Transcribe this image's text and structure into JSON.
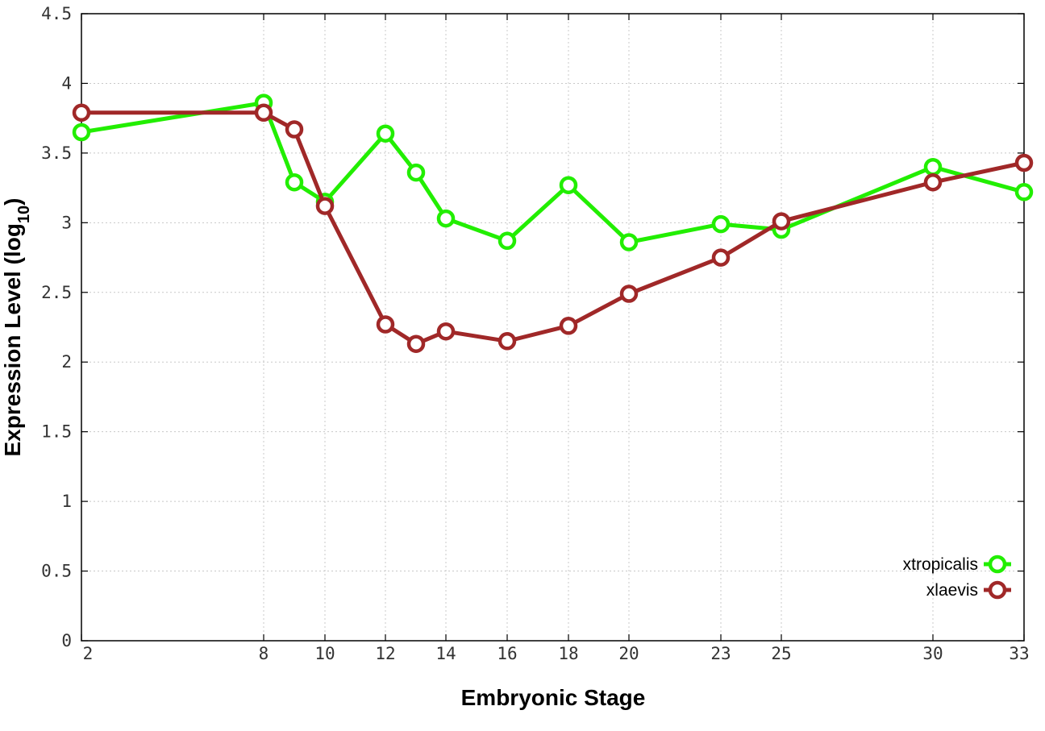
{
  "chart_data": {
    "type": "line",
    "xlabel": "Embryonic Stage",
    "ylabel_main": "Expression Level (log",
    "ylabel_sub": "10",
    "ylabel_close": ")",
    "x_ticks": [
      "2",
      "8",
      "10",
      "12",
      "14",
      "16",
      "18",
      "20",
      "23",
      "25",
      "30",
      "33"
    ],
    "y_ticks": [
      "0",
      "0.5",
      "1",
      "1.5",
      "2",
      "2.5",
      "3",
      "3.5",
      "4",
      "4.5"
    ],
    "ylim": [
      0,
      4.5
    ],
    "grid": true,
    "legend_position": "bottom-right",
    "series": [
      {
        "name": "xtropicalis",
        "color": "#22ee00",
        "x": [
          2,
          8,
          9,
          10,
          12,
          13,
          14,
          16,
          18,
          20,
          23,
          25,
          30,
          33
        ],
        "values": [
          3.65,
          3.86,
          3.29,
          3.15,
          3.64,
          3.36,
          3.03,
          2.87,
          3.27,
          2.86,
          2.99,
          2.95,
          3.4,
          3.22
        ]
      },
      {
        "name": "xlaevis",
        "color": "#a02828",
        "x": [
          2,
          8,
          9,
          10,
          12,
          13,
          14,
          16,
          18,
          20,
          23,
          25,
          30,
          33
        ],
        "values": [
          3.79,
          3.79,
          3.67,
          3.12,
          2.27,
          2.13,
          2.22,
          2.15,
          2.26,
          2.49,
          2.75,
          3.01,
          3.29,
          3.43
        ]
      }
    ]
  }
}
